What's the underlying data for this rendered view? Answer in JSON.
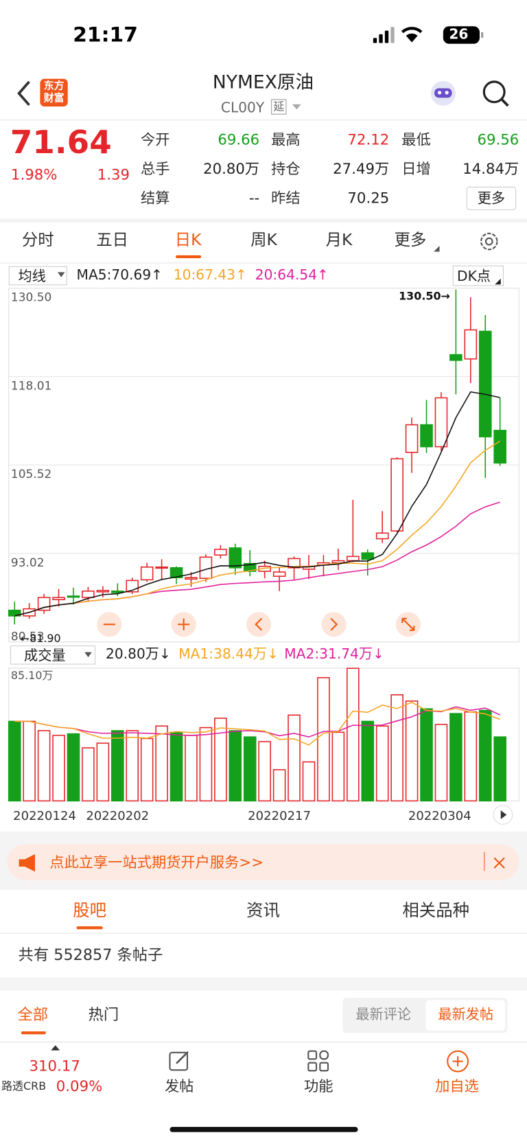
{
  "status_bar": {
    "time": "21:17",
    "battery": "26"
  },
  "header": {
    "logo_lines": [
      "东方",
      "财富"
    ],
    "title": "NYMEX原油",
    "code": "CL00Y",
    "delay_tag": "延"
  },
  "quote": {
    "price": "71.64",
    "change_pct": "1.98%",
    "change": "1.39",
    "fields": [
      {
        "label": "今开",
        "value": "69.66"
      },
      {
        "label": "最高",
        "value": "72.12"
      },
      {
        "label": "最低",
        "value": "69.56"
      },
      {
        "label": "总手",
        "value": "20.80万"
      },
      {
        "label": "持仓",
        "value": "27.49万"
      },
      {
        "label": "日增",
        "value": "14.84万"
      },
      {
        "label": "结算",
        "value": "--"
      },
      {
        "label": "昨结",
        "value": "70.25"
      }
    ],
    "more": "更多"
  },
  "tabs": [
    "分时",
    "五日",
    "日K",
    "周K",
    "月K",
    "更多"
  ],
  "kline": {
    "indicator": "均线",
    "ma_labels": [
      "MA5:70.69↑",
      "10:67.43↑",
      "20:64.54↑"
    ],
    "dk": "DK点",
    "ylim": [
      80.53,
      130.5
    ],
    "yticks": [
      {
        "value": 130.5,
        "label": "130.50"
      },
      118.01,
      105.52,
      93.02,
      80.53
    ],
    "high_marker": "130.50→",
    "low_marker": "←81.90",
    "open": [
      85.0,
      84.2,
      85.0,
      86.5,
      87.0,
      86.8,
      87.6,
      87.7,
      87.6,
      89.3,
      91.0,
      91.0,
      89.4,
      89.5,
      92.8,
      93.8,
      91.6,
      90.5,
      89.8,
      91.0,
      90.8,
      91.4,
      91.7,
      92.0,
      93.1,
      95.1,
      96.2,
      107.3,
      111.2,
      108.1,
      121.1,
      120.5,
      124.4,
      110.4
    ],
    "high": [
      86.2,
      86.0,
      87.3,
      88.0,
      88.2,
      88.3,
      88.4,
      88.8,
      89.6,
      91.7,
      92.2,
      91.2,
      90.4,
      92.9,
      94.2,
      94.4,
      93.5,
      92.0,
      91.0,
      92.6,
      92.8,
      92.8,
      93.7,
      100.6,
      93.6,
      99.0,
      106.6,
      112.2,
      114.7,
      115.8,
      130.3,
      129.2,
      126.7,
      115.0
    ],
    "low": [
      83.0,
      83.8,
      84.5,
      85.5,
      85.8,
      86.3,
      86.8,
      87.0,
      87.3,
      89.0,
      89.4,
      88.7,
      88.3,
      89.0,
      92.3,
      90.0,
      89.8,
      89.5,
      87.7,
      89.2,
      89.4,
      89.8,
      90.7,
      91.8,
      89.9,
      94.5,
      96.0,
      104.4,
      107.2,
      107.5,
      115.5,
      117.1,
      103.7,
      105.4
    ],
    "close": [
      84.2,
      85.2,
      86.8,
      86.8,
      86.9,
      87.7,
      87.8,
      87.5,
      89.2,
      91.1,
      91.1,
      89.6,
      89.6,
      92.5,
      93.6,
      91.0,
      90.5,
      91.2,
      90.4,
      92.3,
      91.2,
      91.7,
      92.0,
      92.6,
      92.2,
      95.9,
      106.4,
      111.2,
      108.1,
      115.0,
      120.3,
      124.6,
      109.5,
      105.8
    ],
    "volume": {
      "selector": "成交量",
      "labels": [
        "20.80万↓",
        "MA1:38.44万↓",
        "MA2:31.74万↓"
      ],
      "max_label": "85.10万",
      "vlim": [
        0,
        85.1
      ],
      "values": [
        51,
        51,
        45,
        42,
        43,
        34,
        37,
        45,
        45,
        40,
        48,
        44,
        42,
        47,
        53,
        45,
        41,
        38,
        20,
        55,
        25,
        79,
        44,
        85,
        51,
        48,
        68,
        64,
        59,
        49,
        56,
        57,
        58,
        41
      ]
    },
    "dates": [
      "20220124",
      "20220202",
      "20220217",
      "20220304"
    ]
  },
  "banner": "点此立享一站式期货开户服务>>",
  "sections": [
    "股吧",
    "资讯",
    "相关品种"
  ],
  "post_count": "共有 552857 条帖子",
  "filters": [
    "全部",
    "热门"
  ],
  "sorts": [
    "最新评论",
    "最新发帖"
  ],
  "bottom_bar": {
    "crb_value": "310.17",
    "crb_name": "路透CRB",
    "crb_pct": "0.09%",
    "items": [
      "发帖",
      "功能",
      "加自选"
    ]
  }
}
